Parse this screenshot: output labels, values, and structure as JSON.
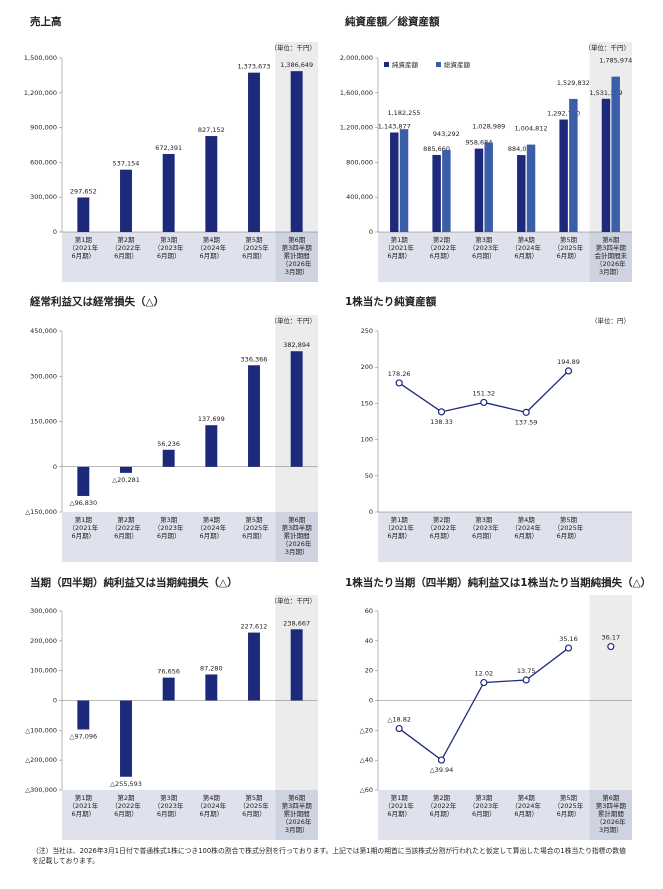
{
  "chart_data": [
    {
      "type": "bar",
      "title": "売上高",
      "unit": "（単位：千円）",
      "highlight_last": true,
      "color": "#1d2a7c",
      "categories": [
        "第1期\n（2021年\n6月期）",
        "第2期\n（2022年\n6月期）",
        "第3期\n（2023年\n6月期）",
        "第4期\n（2024年\n6月期）",
        "第5期\n（2025年\n6月期）",
        "第6期\n第3四半期\n累計期間\n（2026年\n3月期）"
      ],
      "values": [
        297652,
        537154,
        672391,
        827152,
        1373673,
        1386649
      ],
      "value_labels": [
        "297,652",
        "537,154",
        "672,391",
        "827,152",
        "1,373,673",
        "1,386,649"
      ],
      "ylim": [
        0,
        1500000
      ],
      "yticks": [
        0,
        {
          "value": 300000,
          "label": "300,000"
        },
        {
          "value": 600000,
          "label": "600,000"
        },
        {
          "value": 900000,
          "label": "900,000"
        },
        {
          "value": 1200000,
          "label": "1,200,000"
        },
        {
          "value": 1500000,
          "label": "1,500,000"
        }
      ]
    },
    {
      "type": "bar",
      "title": "純資産額／総資産額",
      "unit": "（単位：千円）",
      "highlight_last": true,
      "categories": [
        "第1期\n（2021年\n6月期）",
        "第2期\n（2022年\n6月期）",
        "第3期\n（2023年\n6月期）",
        "第4期\n（2024年\n6月期）",
        "第5期\n（2025年\n6月期）",
        "第6期\n第3四半期\n会計期間末\n（2026年\n3月期）"
      ],
      "series": [
        {
          "name": "純資産額",
          "color": "#1d2a7c",
          "values": [
            1143877,
            885660,
            958684,
            884032,
            1292760,
            1531389
          ],
          "value_labels": [
            "1,143,877",
            "885,660",
            "958,684",
            "884,032",
            "1,292,760",
            "1,531,389"
          ]
        },
        {
          "name": "総資産額",
          "color": "#3b5ea8",
          "values": [
            1182255,
            943292,
            1028989,
            1004812,
            1529832,
            1785974
          ],
          "value_labels": [
            "1,182,255",
            "943,292",
            "1,028,989",
            "1,004,812",
            "1,529,832",
            "1,785,974"
          ]
        }
      ],
      "ylim": [
        0,
        2000000
      ],
      "yticks": [
        0,
        {
          "value": 400000,
          "label": "400,000"
        },
        {
          "value": 800000,
          "label": "800,000"
        },
        {
          "value": 1200000,
          "label": "1,200,000"
        },
        {
          "value": 1600000,
          "label": "1,600,000"
        },
        {
          "value": 2000000,
          "label": "2,000,000"
        }
      ]
    },
    {
      "type": "bar",
      "title": "経常利益又は経常損失（△）",
      "unit": "（単位：千円）",
      "highlight_last": true,
      "color": "#1d2a7c",
      "categories": [
        "第1期\n（2021年\n6月期）",
        "第2期\n（2022年\n6月期）",
        "第3期\n（2023年\n6月期）",
        "第4期\n（2024年\n6月期）",
        "第5期\n（2025年\n6月期）",
        "第6期\n第3四半期\n累計期間\n（2026年\n3月期）"
      ],
      "values": [
        -96830,
        -20281,
        56236,
        137699,
        336366,
        382894
      ],
      "value_labels": [
        "△96,830",
        "△20,281",
        "56,236",
        "137,699",
        "336,366",
        "382,894"
      ],
      "ylim": [
        -150000,
        450000
      ],
      "yticks": [
        {
          "value": -150000,
          "label": "△150,000"
        },
        0,
        {
          "value": 150000,
          "label": "150,000"
        },
        {
          "value": 300000,
          "label": "300,000"
        },
        {
          "value": 450000,
          "label": "450,000"
        }
      ]
    },
    {
      "type": "line",
      "title": "1株当たり純資産額",
      "unit": "（単位：円）",
      "color": "#1d2a7c",
      "categories": [
        "第1期\n（2021年\n6月期）",
        "第2期\n（2022年\n6月期）",
        "第3期\n（2023年\n6月期）",
        "第4期\n（2024年\n6月期）",
        "第5期\n（2025年\n6月期）"
      ],
      "values": [
        178.26,
        138.33,
        151.32,
        137.59,
        194.89
      ],
      "ylim": [
        0,
        250
      ],
      "yticks": [
        0,
        50,
        100,
        150,
        200,
        250
      ]
    },
    {
      "type": "bar",
      "title": "当期（四半期）純利益又は当期純損失（△）",
      "unit": "（単位：千円）",
      "highlight_last": true,
      "color": "#1d2a7c",
      "categories": [
        "第1期\n（2021年\n6月期）",
        "第2期\n（2022年\n6月期）",
        "第3期\n（2023年\n6月期）",
        "第4期\n（2024年\n6月期）",
        "第5期\n（2025年\n6月期）",
        "第6期\n第3四半期\n累計期間\n（2026年\n3月期）"
      ],
      "values": [
        -97096,
        -255593,
        76656,
        87280,
        227612,
        238667
      ],
      "value_labels": [
        "△97,096",
        "△255,593",
        "76,656",
        "87,280",
        "227,612",
        "238,667"
      ],
      "ylim": [
        -300000,
        300000
      ],
      "yticks": [
        {
          "value": -300000,
          "label": "△300,000"
        },
        {
          "value": -200000,
          "label": "△200,000"
        },
        {
          "value": -100000,
          "label": "△100,000"
        },
        0,
        {
          "value": 100000,
          "label": "100,000"
        },
        {
          "value": 200000,
          "label": "200,000"
        },
        {
          "value": 300000,
          "label": "300,000"
        }
      ]
    },
    {
      "type": "line",
      "title": "1株当たり当期（四半期）純利益又は1株当たり当期純損失（△）",
      "highlight_last": true,
      "categories": [
        "第1期\n（2021年\n6月期）",
        "第2期\n（2022年\n6月期）",
        "第3期\n（2023年\n6月期）",
        "第4期\n（2024年\n6月期）",
        "第5期\n（2025年\n6月期）",
        "第6期\n第3四半期\n累計期間\n（2026年\n3月期）"
      ],
      "series": [
        {
          "color": "#1d2a7c",
          "values": [
            -18.82,
            -39.94,
            12.02,
            13.75,
            35.16,
            null
          ],
          "value_labels": [
            "△18.82",
            "△39.94",
            "12.02",
            "13.75",
            "35.16",
            null
          ]
        },
        {
          "color": "#1d2a7c",
          "values": [
            null,
            null,
            null,
            null,
            null,
            36.17
          ],
          "value_labels": [
            null,
            null,
            null,
            null,
            null,
            "36.17"
          ]
        }
      ],
      "ylim": [
        -60,
        60
      ],
      "yticks": [
        {
          "value": -60,
          "label": "△60"
        },
        {
          "value": -40,
          "label": "△40"
        },
        {
          "value": -20,
          "label": "△20"
        },
        0,
        20,
        40,
        60
      ]
    }
  ],
  "footnote": "（注）当社は、2026年3月1日付で普通株式1株につき100株の割合で株式分割を行っております。上記では第1期の期首に当該株式分割が行われたと仮定して算出した場合の1株当たり指標の数値を記載しております。"
}
